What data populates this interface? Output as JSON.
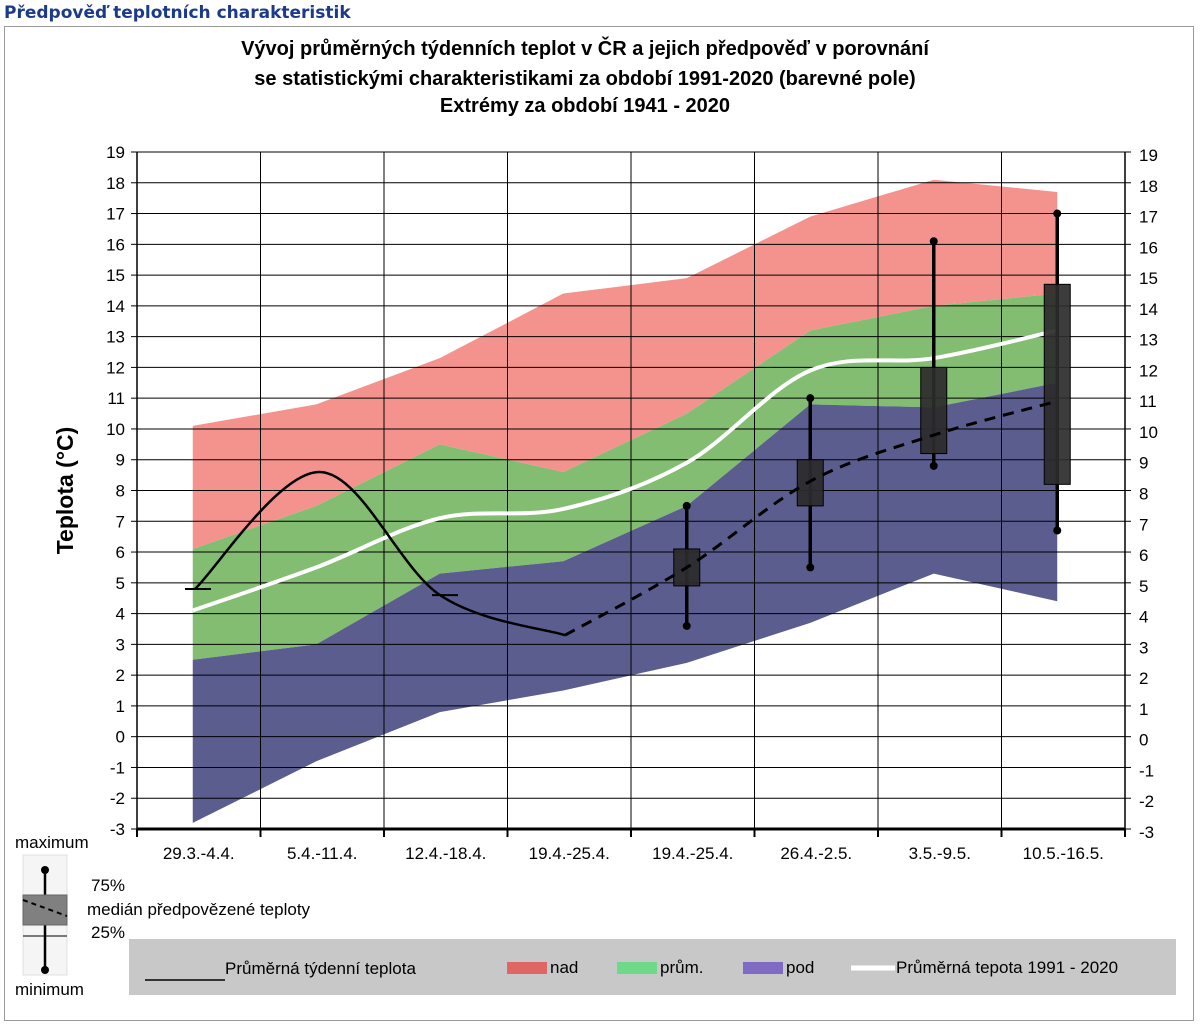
{
  "page": {
    "heading": "Předpověď teplotních charakteristik"
  },
  "chart_data": {
    "type": "area",
    "title_lines": [
      "Vývoj průměrných týdenních teplot v ČR a jejich předpověď v porovnání",
      "se statistickými charakteristikami za období 1991-2020 (barevné pole)",
      "Extrémy za období 1941 - 2020"
    ],
    "ylabel": "Teplota (°C)",
    "ylim": [
      -3,
      19
    ],
    "yticks": [
      -3,
      -2,
      -1,
      0,
      1,
      2,
      3,
      4,
      5,
      6,
      7,
      8,
      9,
      10,
      11,
      12,
      13,
      14,
      15,
      16,
      17,
      18,
      19
    ],
    "categories": [
      "29.3.-4.4.",
      "5.4.-11.4.",
      "12.4.-18.4.",
      "19.4.-25.4.",
      "19.4.-25.4.",
      "26.4.-2.5.",
      "3.5.-9.5.",
      "10.5.-16.5."
    ],
    "grid": true,
    "bands": {
      "min": [
        -2.8,
        -0.8,
        0.8,
        1.5,
        2.4,
        3.7,
        5.3,
        4.4
      ],
      "p_low": [
        2.5,
        3.0,
        5.3,
        5.7,
        7.5,
        10.8,
        10.7,
        11.5
      ],
      "p_high": [
        6.1,
        7.5,
        9.5,
        8.6,
        10.5,
        13.2,
        14.0,
        14.4
      ],
      "max": [
        10.1,
        10.8,
        12.3,
        14.4,
        14.9,
        16.9,
        18.1,
        17.7
      ]
    },
    "normal_1991_2020": [
      4.1,
      5.5,
      7.1,
      7.4,
      8.9,
      11.9,
      12.3,
      13.2
    ],
    "observed_weekly": [
      4.8,
      8.6,
      4.6,
      3.3
    ],
    "forecast_median": [
      3.3,
      5.5,
      8.3,
      9.8,
      10.9
    ],
    "forecast_boxes": [
      {
        "category": "19.4.-25.4.",
        "min": 3.6,
        "q25": 4.9,
        "median": 5.5,
        "q75": 6.1,
        "max": 7.5
      },
      {
        "category": "26.4.-2.5.",
        "min": 5.5,
        "q25": 7.5,
        "median": 8.3,
        "q75": 9.0,
        "max": 11.0
      },
      {
        "category": "3.5.-9.5.",
        "min": 8.8,
        "q25": 9.2,
        "median": 9.8,
        "q75": 12.0,
        "max": 16.1
      },
      {
        "category": "10.5.-16.5.",
        "min": 6.7,
        "q25": 8.2,
        "median": 10.9,
        "q75": 14.7,
        "max": 17.0
      }
    ],
    "box_legend": {
      "maximum": "maximum",
      "q75": "75%",
      "median": "medián předpovězené teploty",
      "q25": "25%",
      "minimum": "minimum"
    },
    "legend": {
      "observed": "Průměrná týdenní teplota",
      "above": "nad",
      "normal": "prům.",
      "below": "pod",
      "normal_line": "Průměrná tepota 1991 - 2020"
    },
    "colors": {
      "above": "#f4938d",
      "normal": "#82bd72",
      "below": "#5a5d8e",
      "legend_above": "#e06666",
      "legend_normal": "#6fd98a",
      "legend_below": "#7f6bc4",
      "line": "#000000",
      "normal_line": "#ffffff",
      "box": "#2b2b2b",
      "legend_bg": "#c8c8c8",
      "heading": "#1c3a8c"
    }
  }
}
